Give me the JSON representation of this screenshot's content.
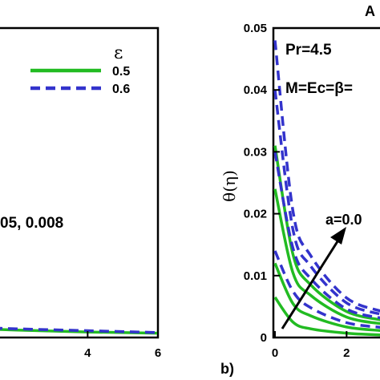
{
  "chart_data": [
    {
      "panel": "left",
      "type": "line",
      "xlim": [
        0,
        6
      ],
      "x_ticks": [
        "4",
        "6"
      ],
      "legend": {
        "title": "ε",
        "entries": [
          "0.5",
          "0.6"
        ],
        "placement": "top-right"
      },
      "annotations": [
        "05, 0.008"
      ],
      "series": [
        {
          "name": "0.5",
          "color": "#22bb22",
          "dash": "solid",
          "x": [
            0,
            2,
            4,
            6
          ],
          "y": [
            0.0016,
            0.0012,
            0.0009,
            0.0007
          ]
        },
        {
          "name": "0.6",
          "color": "#3333cc",
          "dash": "dashed",
          "x": [
            0,
            2,
            4,
            6
          ],
          "y": [
            0.0018,
            0.0014,
            0.0011,
            0.0008
          ]
        }
      ]
    },
    {
      "panel": "right",
      "type": "line",
      "ylabel": "θ(η)",
      "xlim": [
        0,
        3
      ],
      "ylim": [
        0,
        0.05
      ],
      "x_ticks": [
        "0",
        "2"
      ],
      "y_ticks": [
        "0",
        "0.01",
        "0.02",
        "0.03",
        "0.04",
        "0.05"
      ],
      "panel_label": "b)",
      "corner_text": "A",
      "annotations": [
        "Pr=4.5",
        "M=Ec=β=",
        "a=0.0"
      ],
      "series": [
        {
          "color": "#22bb22",
          "dash": "solid",
          "x": [
            0,
            0.5,
            1,
            2,
            3
          ],
          "y": [
            0.0065,
            0.0025,
            0.0014,
            0.0007,
            0.0004
          ]
        },
        {
          "color": "#22bb22",
          "dash": "solid",
          "x": [
            0,
            0.5,
            1,
            2,
            3
          ],
          "y": [
            0.012,
            0.0055,
            0.0035,
            0.0017,
            0.0011
          ]
        },
        {
          "color": "#22bb22",
          "dash": "solid",
          "x": [
            0,
            0.5,
            1,
            2,
            3
          ],
          "y": [
            0.024,
            0.0105,
            0.0068,
            0.0033,
            0.0022
          ]
        },
        {
          "color": "#22bb22",
          "dash": "solid",
          "x": [
            0,
            0.5,
            1,
            2,
            3
          ],
          "y": [
            0.031,
            0.0135,
            0.0085,
            0.0042,
            0.0028
          ]
        },
        {
          "color": "#3333cc",
          "dash": "dashed",
          "x": [
            0,
            0.5,
            1,
            2,
            3
          ],
          "y": [
            0.014,
            0.0075,
            0.0048,
            0.0024,
            0.0016
          ]
        },
        {
          "color": "#3333cc",
          "dash": "dashed",
          "x": [
            0,
            0.5,
            1,
            2,
            3
          ],
          "y": [
            0.03,
            0.0145,
            0.0095,
            0.0046,
            0.0031
          ]
        },
        {
          "color": "#3333cc",
          "dash": "dashed",
          "x": [
            0,
            0.5,
            1,
            2,
            3
          ],
          "y": [
            0.04,
            0.0175,
            0.0115,
            0.0056,
            0.0037
          ]
        },
        {
          "color": "#3333cc",
          "dash": "dashed",
          "x": [
            0,
            0.5,
            1,
            2,
            3
          ],
          "y": [
            0.048,
            0.0205,
            0.0132,
            0.0064,
            0.0042
          ]
        }
      ]
    }
  ]
}
